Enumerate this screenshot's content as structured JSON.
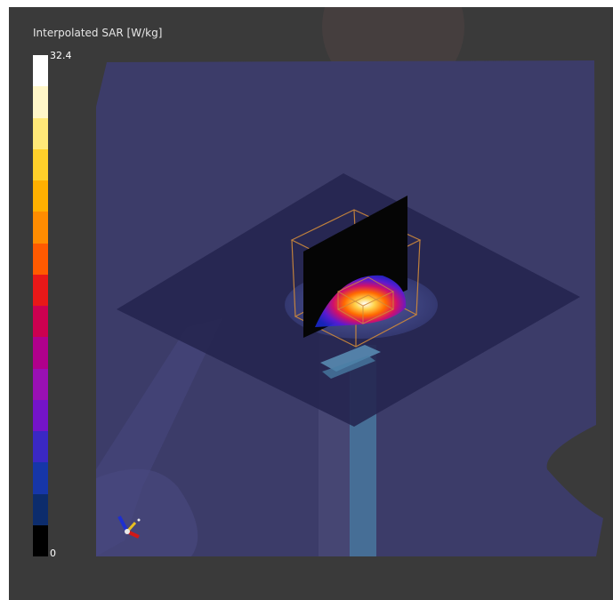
{
  "legend": {
    "title": "Interpolated SAR [W/kg]",
    "max_label": "32.4",
    "min_label": "0",
    "colors": [
      "#ffffff",
      "#fff6c8",
      "#ffe878",
      "#ffd02a",
      "#ffb000",
      "#ff8c00",
      "#ff5a00",
      "#e81818",
      "#cc0050",
      "#b0008c",
      "#9a10b4",
      "#7414c8",
      "#3a28c4",
      "#1636a8",
      "#0c2c6c",
      "#000000"
    ]
  },
  "scene": {
    "background_color": "#3a3a3a",
    "phantom_color": "#3c3c6c",
    "plate_color": "#2a2a55",
    "slice_plane_color": "#050505",
    "bounding_box_color": "#d08a3a",
    "feed_color": "#4a7fa6",
    "orientation_axes_icon": "orientation-axes-icon"
  }
}
